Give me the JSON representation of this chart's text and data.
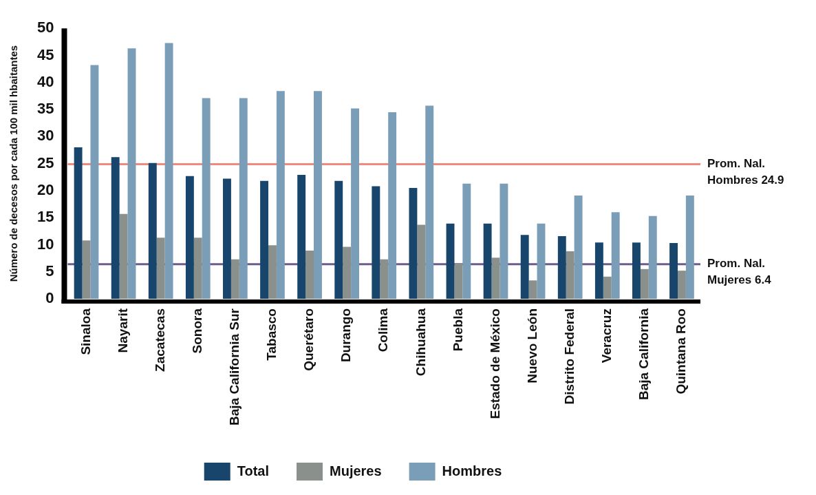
{
  "chart_data": {
    "type": "bar",
    "ylabel": "Número de decesos por cada 100 mil hbaitantes",
    "categories": [
      "Sinaloa",
      "Nayarit",
      "Zacatecas",
      "Sonora",
      "Baja California Sur",
      "Tabasco",
      "Querétaro",
      "Durango",
      "Colima",
      "Chihuahua",
      "Puebla",
      "Estado de México",
      "Nuevo León",
      "Distrito Federal",
      "Veracruz",
      "Baja California",
      "Quintana Roo"
    ],
    "series": [
      {
        "name": "Total",
        "color": "#17456b",
        "values": [
          28.0,
          26.2,
          25.1,
          22.7,
          22.2,
          21.8,
          22.9,
          21.8,
          20.8,
          20.5,
          13.9,
          13.9,
          11.8,
          11.6,
          10.4,
          10.4,
          10.3
        ]
      },
      {
        "name": "Mujeres",
        "color": "#8a918d",
        "values": [
          10.8,
          15.7,
          11.3,
          11.3,
          7.3,
          9.9,
          8.9,
          9.6,
          7.3,
          13.7,
          6.5,
          7.6,
          3.4,
          8.8,
          4.1,
          5.5,
          5.2
        ]
      },
      {
        "name": "Hombres",
        "color": "#7a9db8",
        "values": [
          43.2,
          46.3,
          47.3,
          37.1,
          37.1,
          38.4,
          38.4,
          35.2,
          34.5,
          35.7,
          21.3,
          21.3,
          13.9,
          19.1,
          16.0,
          15.3,
          19.1
        ]
      }
    ],
    "ylim": [
      0,
      50
    ],
    "yticks": [
      0,
      5,
      10,
      15,
      20,
      25,
      30,
      35,
      40,
      45,
      50
    ],
    "ref_lines": [
      {
        "axis": "y",
        "value": 24.9,
        "label": "Prom. Nal. Hombres 24.9",
        "color": "#f08a7e"
      },
      {
        "axis": "y",
        "value": 6.4,
        "label": "Prom. Nal. Mujeres 6.4",
        "color": "#6e5a8c"
      }
    ],
    "grid": false,
    "legend": "bottom"
  }
}
